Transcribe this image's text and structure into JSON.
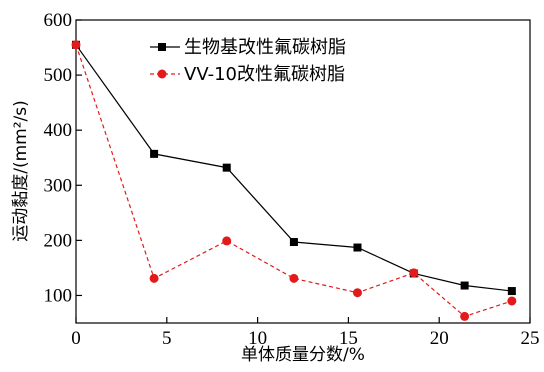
{
  "chart_data": {
    "type": "line",
    "title": "",
    "xlabel": "单体质量分数/%",
    "ylabel": "运动黏度/(mm²/s)",
    "xlim": [
      0,
      25
    ],
    "ylim": [
      50,
      600
    ],
    "xticks": [
      0,
      5,
      10,
      15,
      20,
      25
    ],
    "yticks": [
      100,
      200,
      300,
      400,
      500,
      600
    ],
    "grid": false,
    "legend_position": "top-right",
    "series": [
      {
        "name": "生物基改性氟碳树脂",
        "color": "#000000",
        "line_style": "solid",
        "marker": "square",
        "x": [
          0,
          4.3,
          8.3,
          12,
          15.5,
          18.6,
          21.4,
          24
        ],
        "y": [
          555,
          357,
          332,
          197,
          187,
          140,
          118,
          108
        ]
      },
      {
        "name": "VV-10改性氟碳树脂",
        "color": "#e31a1c",
        "line_style": "dashed",
        "marker": "circle",
        "x": [
          0,
          4.3,
          8.3,
          12,
          15.5,
          18.6,
          21.4,
          24
        ],
        "y": [
          555,
          131,
          199,
          131,
          105,
          141,
          62,
          90
        ]
      }
    ]
  }
}
